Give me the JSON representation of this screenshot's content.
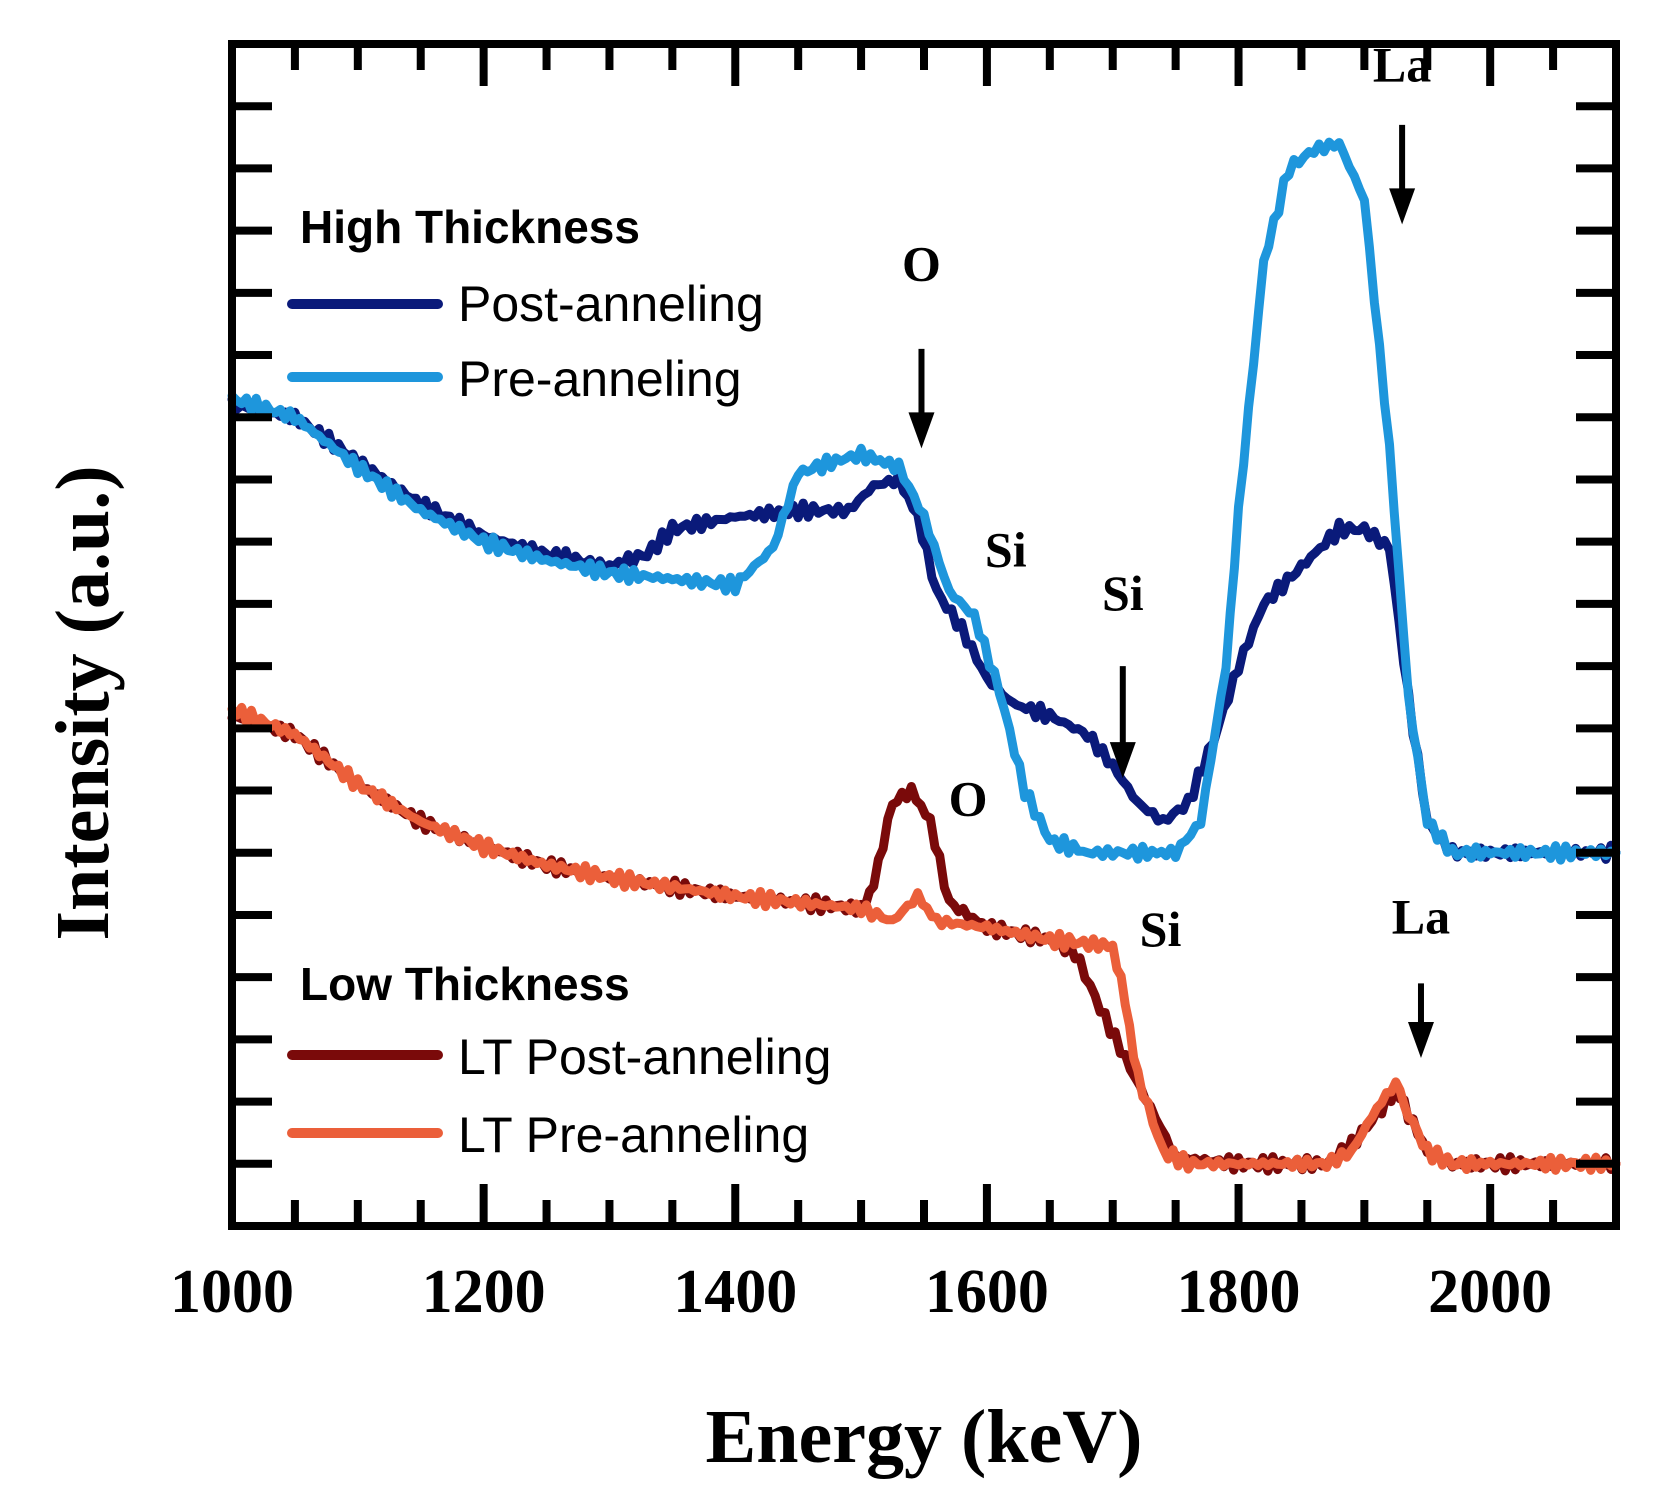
{
  "chart_data": {
    "type": "line",
    "title": "",
    "xlabel": "Energy (keV)",
    "ylabel": "Intensity (a.u.)",
    "xlim": [
      1000,
      2100
    ],
    "ylim": [
      0,
      19
    ],
    "xticks": [
      1000,
      1200,
      1400,
      1600,
      1800,
      2000
    ],
    "minor_xstep": 50,
    "minor_ystep": 1,
    "y_tick_labels_shown": false,
    "grid": false,
    "legend_groups": [
      {
        "heading": "High Thickness",
        "entries": [
          "Post-anneling",
          "Pre-anneling"
        ],
        "location": "upper-left"
      },
      {
        "heading": "Low Thickness",
        "entries": [
          "LT Post-anneling",
          "LT Pre-anneling"
        ],
        "location": "lower-left"
      }
    ],
    "series": [
      {
        "name": "Post-anneling",
        "color": "#0a1a7a",
        "x": [
          1000,
          1050,
          1100,
          1150,
          1200,
          1250,
          1300,
          1330,
          1350,
          1400,
          1450,
          1490,
          1510,
          1530,
          1545,
          1560,
          1580,
          1600,
          1620,
          1650,
          1680,
          1700,
          1720,
          1740,
          1760,
          1780,
          1800,
          1820,
          1850,
          1880,
          1900,
          1920,
          1935,
          1950,
          1970,
          2000,
          2100
        ],
        "y": [
          13.2,
          13.0,
          12.3,
          11.6,
          11.1,
          10.8,
          10.6,
          10.8,
          11.2,
          11.4,
          11.5,
          11.5,
          11.9,
          12.0,
          11.4,
          10.2,
          9.6,
          8.8,
          8.4,
          8.2,
          7.9,
          7.4,
          6.8,
          6.5,
          6.8,
          7.8,
          9.0,
          10.0,
          10.6,
          11.2,
          11.2,
          10.9,
          8.5,
          6.5,
          6.0,
          6.0,
          6.0
        ]
      },
      {
        "name": "Pre-anneling",
        "color": "#1e96dc",
        "x": [
          1000,
          1050,
          1100,
          1150,
          1200,
          1250,
          1300,
          1350,
          1400,
          1430,
          1450,
          1480,
          1500,
          1530,
          1550,
          1570,
          1590,
          1610,
          1630,
          1650,
          1680,
          1720,
          1750,
          1770,
          1790,
          1800,
          1820,
          1840,
          1860,
          1880,
          1900,
          1920,
          1935,
          1950,
          1970,
          2000,
          2100
        ],
        "y": [
          13.3,
          13.0,
          12.2,
          11.5,
          11.0,
          10.7,
          10.5,
          10.4,
          10.3,
          10.9,
          12.1,
          12.3,
          12.4,
          12.2,
          11.4,
          10.2,
          9.8,
          8.6,
          7.0,
          6.2,
          6.0,
          6.0,
          6.0,
          6.5,
          9.0,
          11.5,
          15.5,
          17.0,
          17.3,
          17.4,
          16.5,
          12.5,
          8.5,
          6.5,
          6.0,
          6.0,
          6.0
        ]
      },
      {
        "name": "LT Post-anneling",
        "color": "#7a0a0a",
        "x": [
          1000,
          1050,
          1100,
          1150,
          1200,
          1250,
          1300,
          1400,
          1500,
          1510,
          1525,
          1540,
          1555,
          1570,
          1600,
          1650,
          1670,
          1690,
          1710,
          1730,
          1750,
          1800,
          1870,
          1890,
          1910,
          1925,
          1935,
          1950,
          1970,
          2000,
          2100
        ],
        "y": [
          8.2,
          7.9,
          7.1,
          6.5,
          6.1,
          5.8,
          5.6,
          5.3,
          5.1,
          5.5,
          6.8,
          7.0,
          6.5,
          5.2,
          4.8,
          4.6,
          4.4,
          3.5,
          2.7,
          1.9,
          1.1,
          1.0,
          1.0,
          1.3,
          1.8,
          2.2,
          1.8,
          1.2,
          1.0,
          1.0,
          1.0
        ]
      },
      {
        "name": "LT Pre-anneling",
        "color": "#eb5f3a",
        "x": [
          1000,
          1050,
          1100,
          1150,
          1200,
          1250,
          1300,
          1400,
          1500,
          1525,
          1545,
          1560,
          1600,
          1650,
          1700,
          1710,
          1720,
          1740,
          1760,
          1800,
          1870,
          1890,
          1910,
          1925,
          1935,
          1950,
          1970,
          2000,
          2100
        ],
        "y": [
          8.3,
          7.9,
          7.1,
          6.5,
          6.1,
          5.8,
          5.6,
          5.3,
          5.1,
          4.9,
          5.3,
          4.9,
          4.8,
          4.6,
          4.5,
          3.6,
          2.4,
          1.2,
          1.0,
          1.0,
          1.0,
          1.2,
          1.9,
          2.3,
          1.8,
          1.2,
          1.0,
          1.0,
          1.0
        ]
      }
    ],
    "annotations": [
      {
        "text": "O",
        "x": 1548,
        "y": 15.2,
        "arrow": true,
        "arrow_from": 14.1,
        "arrow_to": 12.5
      },
      {
        "text": "Si",
        "x": 1615,
        "y": 10.6,
        "arrow": false
      },
      {
        "text": "Si",
        "x": 1708,
        "y": 9.9,
        "arrow": true,
        "arrow_from": 9.0,
        "arrow_to": 7.2
      },
      {
        "text": "La",
        "x": 1930,
        "y": 18.4,
        "arrow": true,
        "arrow_from": 17.7,
        "arrow_to": 16.1
      },
      {
        "text": "O",
        "x": 1585,
        "y": 6.6,
        "arrow": false
      },
      {
        "text": "Si",
        "x": 1738,
        "y": 4.5,
        "arrow": false
      },
      {
        "text": "La",
        "x": 1945,
        "y": 4.7,
        "arrow": true,
        "arrow_from": 3.9,
        "arrow_to": 2.7
      }
    ]
  }
}
